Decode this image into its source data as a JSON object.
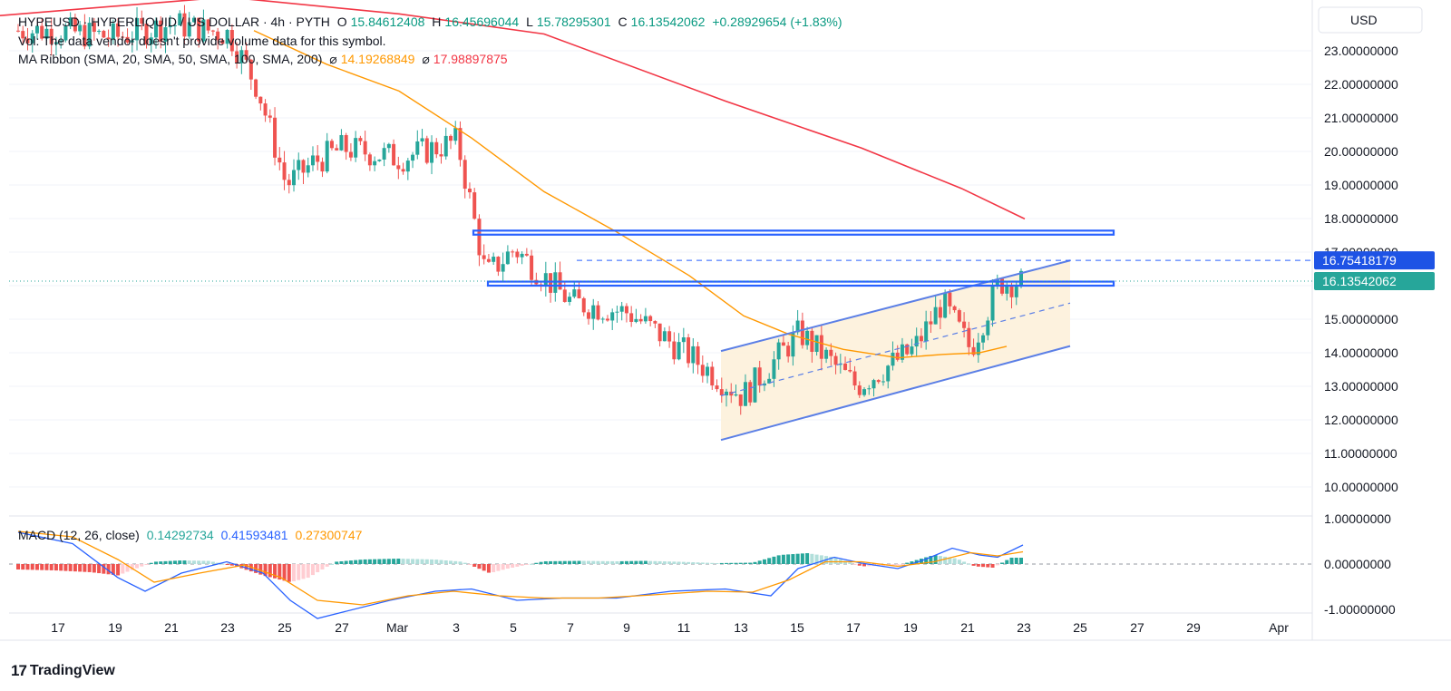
{
  "header": {
    "symbol": "HYPEUSD · HYPERLIQUID / US DOLLAR · 4h · PYTH",
    "o_label": "O",
    "o_value": "15.84612408",
    "h_label": "H",
    "h_value": "16.45696044",
    "l_label": "L",
    "l_value": "15.78295301",
    "c_label": "C",
    "c_value": "16.13542062",
    "change": "+0.28929654 (+1.83%)",
    "vol_note": "Vol: The data vendor doesn't provide volume data for this symbol.",
    "ma_label": "MA Ribbon (SMA, 20, SMA, 50, SMA, 100, SMA, 200)",
    "ma_icon": "⌀",
    "ma_value_1": "14.19268849",
    "ma_value_2": "17.98897875",
    "macd_label": "MACD (12, 26, close)",
    "macd_hist": "0.14292734",
    "macd_line": "0.41593481",
    "macd_signal": "0.27300747"
  },
  "currency": "USD",
  "brand": "TradingView",
  "colors": {
    "up": "#26a69a",
    "down": "#ef5350",
    "sma_short": "#ff9800",
    "sma_long": "#f23645",
    "zone": "#2962ff",
    "channel": "#5b7fe6",
    "channel_fill": "#fdf0d8",
    "macd_line": "#2962ff",
    "signal_line": "#ff9800",
    "last_price_bg": "#26a69a",
    "marker_bg": "#1e53e5"
  },
  "price_axis": {
    "ticks": [
      "23.00000000",
      "22.00000000",
      "21.00000000",
      "20.00000000",
      "19.00000000",
      "18.00000000",
      "17.00000000",
      "15.00000000",
      "14.00000000",
      "13.00000000",
      "12.00000000",
      "11.00000000",
      "10.00000000"
    ],
    "last_price": "16.13542062",
    "marker_price": "16.75418179"
  },
  "macd_axis": {
    "ticks": [
      "1.00000000",
      "0.00000000",
      "-1.00000000"
    ]
  },
  "time_axis": {
    "ticks": [
      "17",
      "19",
      "21",
      "23",
      "25",
      "27",
      "Mar",
      "3",
      "5",
      "7",
      "9",
      "11",
      "13",
      "15",
      "17",
      "19",
      "21",
      "23",
      "25",
      "27",
      "29",
      "Apr"
    ]
  },
  "chart_data": {
    "type": "candlestick",
    "timeframe": "4h",
    "ylim": [
      9.5,
      23.5
    ],
    "close_approx_by_day": {
      "x": [
        "Feb 17",
        "Feb 19",
        "Feb 21",
        "Feb 23",
        "Feb 24",
        "Feb 25",
        "Feb 26",
        "Feb 27",
        "Mar 1",
        "Mar 3",
        "Mar 4",
        "Mar 5",
        "Mar 7",
        "Mar 9",
        "Mar 11",
        "Mar 13",
        "Mar 15",
        "Mar 17",
        "Mar 19",
        "Mar 20",
        "Mar 21",
        "Mar 22"
      ],
      "y": [
        23.6,
        23.4,
        23.8,
        23.5,
        21.9,
        19.0,
        19.7,
        20.1,
        19.8,
        20.3,
        16.3,
        17.1,
        15.5,
        15.2,
        14.0,
        12.7,
        14.6,
        13.0,
        14.1,
        15.5,
        14.1,
        16.1
      ]
    },
    "sma_20_last": 14.19268849,
    "sma_200_last": 17.98897875,
    "resistance_zones": [
      [
        17.52,
        17.64
      ],
      [
        16.0,
        16.12
      ]
    ],
    "dashed_level": 16.75418179,
    "ascending_channel": {
      "upper": [
        [
          "Mar 12",
          14.05
        ],
        [
          "Mar 24",
          16.75
        ]
      ],
      "lower": [
        [
          "Mar 12",
          11.4
        ],
        [
          "Mar 24",
          14.2
        ]
      ]
    },
    "macd": {
      "ylim": [
        -1.2,
        1.2
      ],
      "hist": 0.14292734,
      "macd": 0.41593481,
      "signal": 0.27300747
    }
  }
}
